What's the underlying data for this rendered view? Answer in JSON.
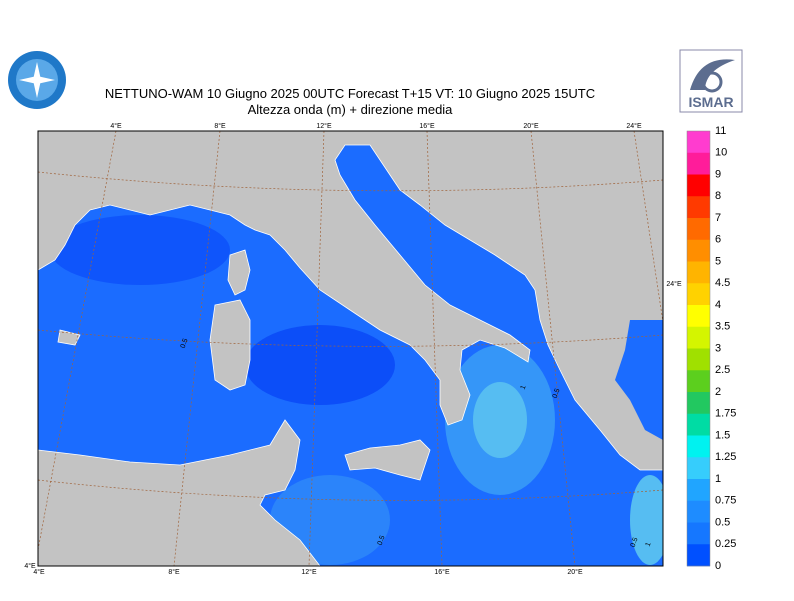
{
  "header": {
    "title": "NETTUNO-WAM  10   Giugno  2025 00UTC Forecast T+15 VT: 10   Giugno  2025 15UTC",
    "subtitle": "Altezza onda (m) + direzione media",
    "logo_text": "ISMAR"
  },
  "map": {
    "top_lon_labels": [
      "4°E",
      "8°E",
      "12°E",
      "16°E",
      "20°E",
      "24°E"
    ],
    "bottom_lon_labels": [
      "4°E",
      "8°E",
      "12°E",
      "16°E",
      "20°E"
    ],
    "corner_label": "4°E",
    "right_label": "24°E",
    "contour_labels": [
      "0.5",
      "1",
      "0.5",
      "0.5",
      "0.5",
      "1"
    ]
  },
  "colorbar": {
    "labels": [
      "11",
      "10",
      "9",
      "8",
      "7",
      "6",
      "5",
      "4.5",
      "4",
      "3.5",
      "3",
      "2.5",
      "2",
      "1.75",
      "1.5",
      "1.25",
      "1",
      "0.75",
      "0.5",
      "0.25",
      "0"
    ]
  }
}
